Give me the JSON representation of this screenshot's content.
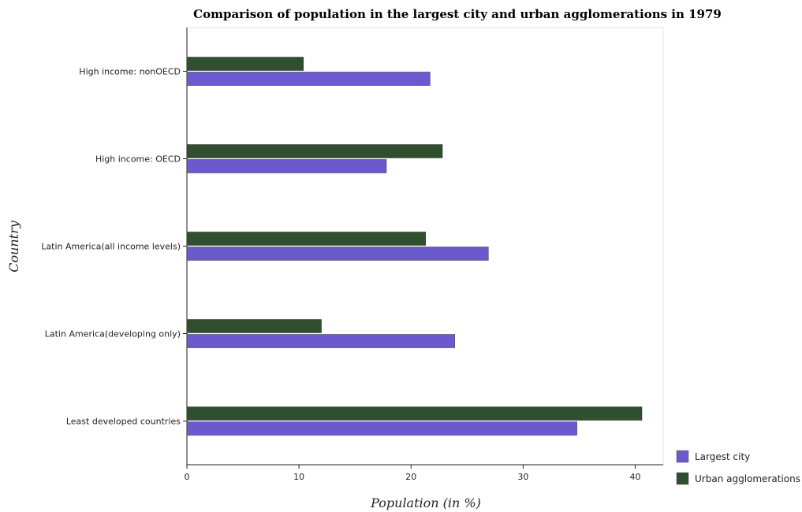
{
  "chart_data": {
    "type": "bar",
    "orientation": "horizontal",
    "title": "Comparison of population in the largest city and urban agglomerations in 1979",
    "xlabel": "Population (in %)",
    "ylabel": "Country",
    "xlim": [
      0,
      42.5
    ],
    "xticks": [
      0,
      10,
      20,
      30,
      40
    ],
    "grid": false,
    "legend_position": "bottom-right",
    "categories": [
      "High income: nonOECD",
      "High income: OECD",
      "Latin America(all income levels)",
      "Latin America(developing only)",
      "Least developed countries"
    ],
    "series": [
      {
        "name": "Largest city",
        "color": "#6a5acd",
        "values": [
          21.7,
          17.8,
          26.9,
          23.9,
          34.8
        ]
      },
      {
        "name": "Urban agglomerations",
        "color": "#2f4f2f",
        "values": [
          10.4,
          22.8,
          21.3,
          12.0,
          40.6
        ]
      }
    ]
  }
}
